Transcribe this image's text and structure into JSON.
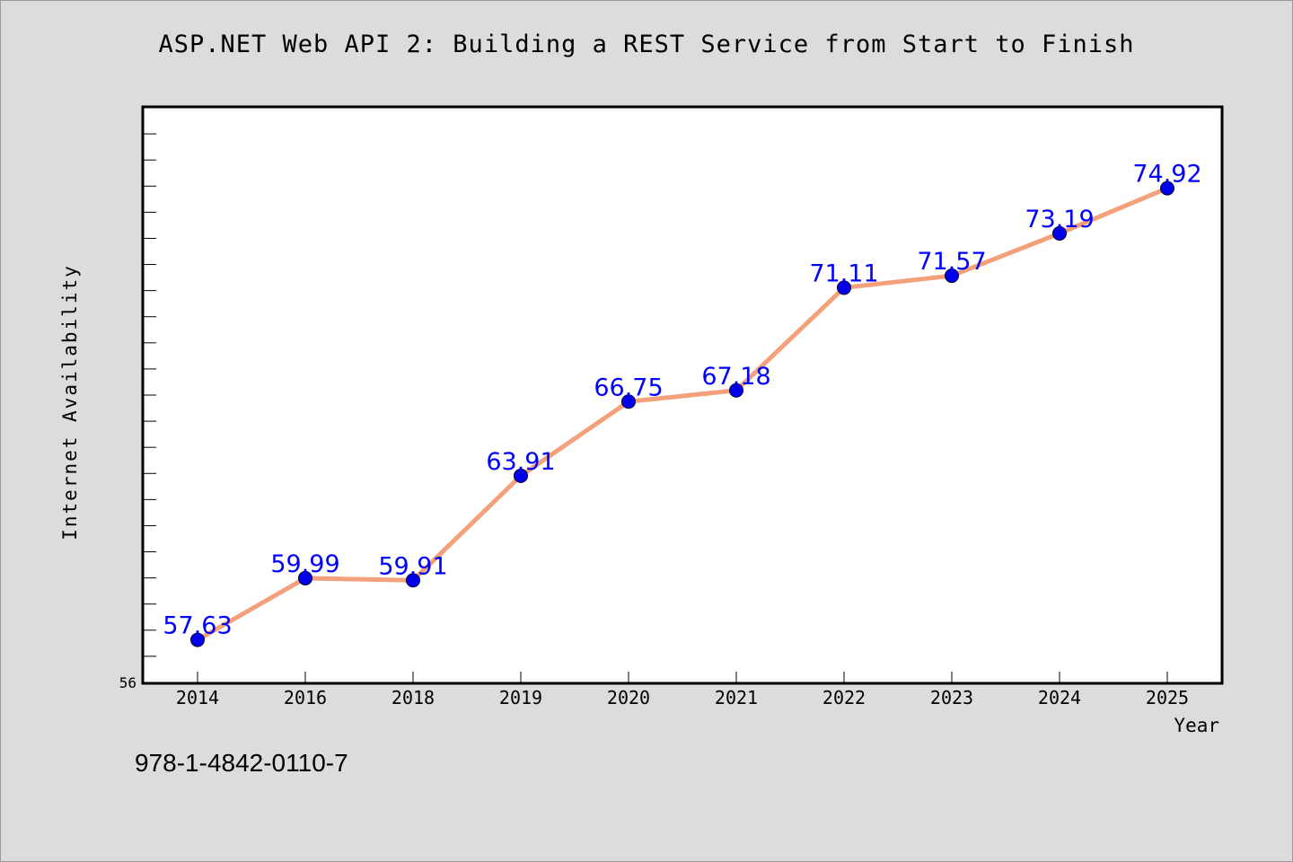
{
  "chart_data": {
    "type": "line",
    "title": "ASP.NET Web API 2: Building a REST Service from Start to Finish",
    "xlabel": "Year",
    "ylabel": "Internet Availability",
    "annotation": "978-1-4842-0110-7",
    "categories": [
      "2014",
      "2016",
      "2018",
      "2019",
      "2020",
      "2021",
      "2022",
      "2023",
      "2024",
      "2025"
    ],
    "series": [
      {
        "values": [
          57.63,
          59.99,
          59.91,
          63.91,
          66.75,
          67.18,
          71.11,
          71.57,
          73.19,
          74.92
        ]
      }
    ],
    "ylim": [
      56,
      78
    ],
    "y_tick_labels": [
      "56"
    ],
    "grid": false,
    "colors": {
      "line": "#f4a07a",
      "marker": "#0000ee",
      "data_label": "#0000ff",
      "plot_background": "#ffffff",
      "page_background": "#dcdcdc"
    }
  }
}
